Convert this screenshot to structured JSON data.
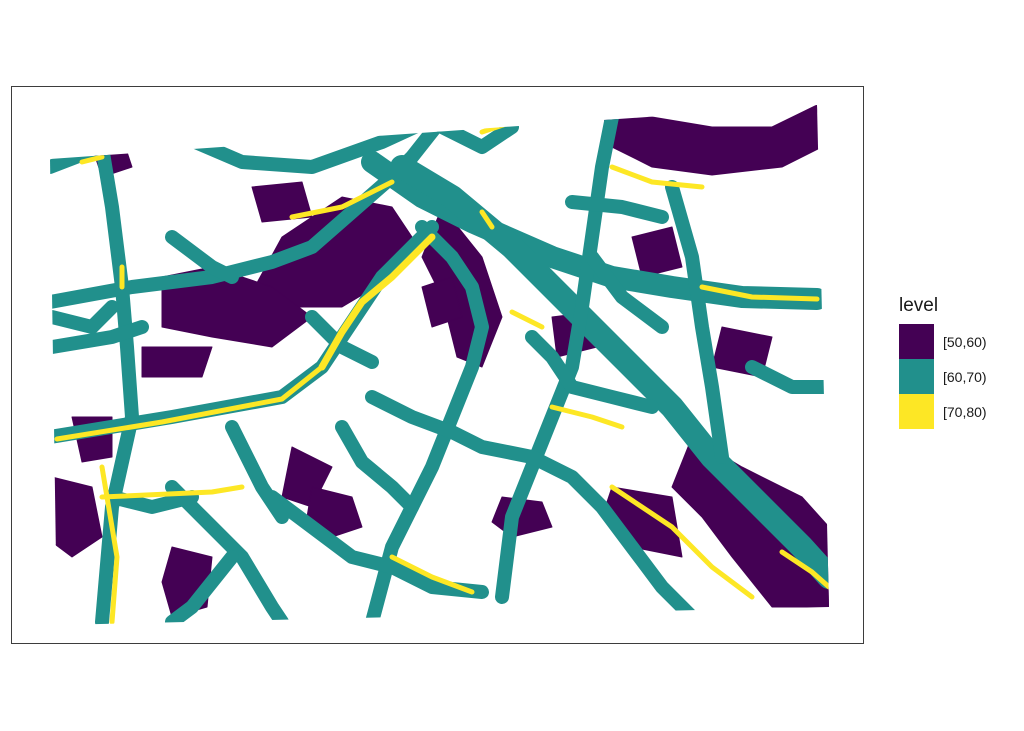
{
  "legend": {
    "title": "level",
    "items": [
      {
        "label": "[50,60)",
        "color": "#440154"
      },
      {
        "label": "[60,70)",
        "color": "#21908C"
      },
      {
        "label": "[70,80)",
        "color": "#FDE725"
      }
    ]
  },
  "map": {
    "type": "noise level raster map",
    "background": "#ffffff"
  }
}
